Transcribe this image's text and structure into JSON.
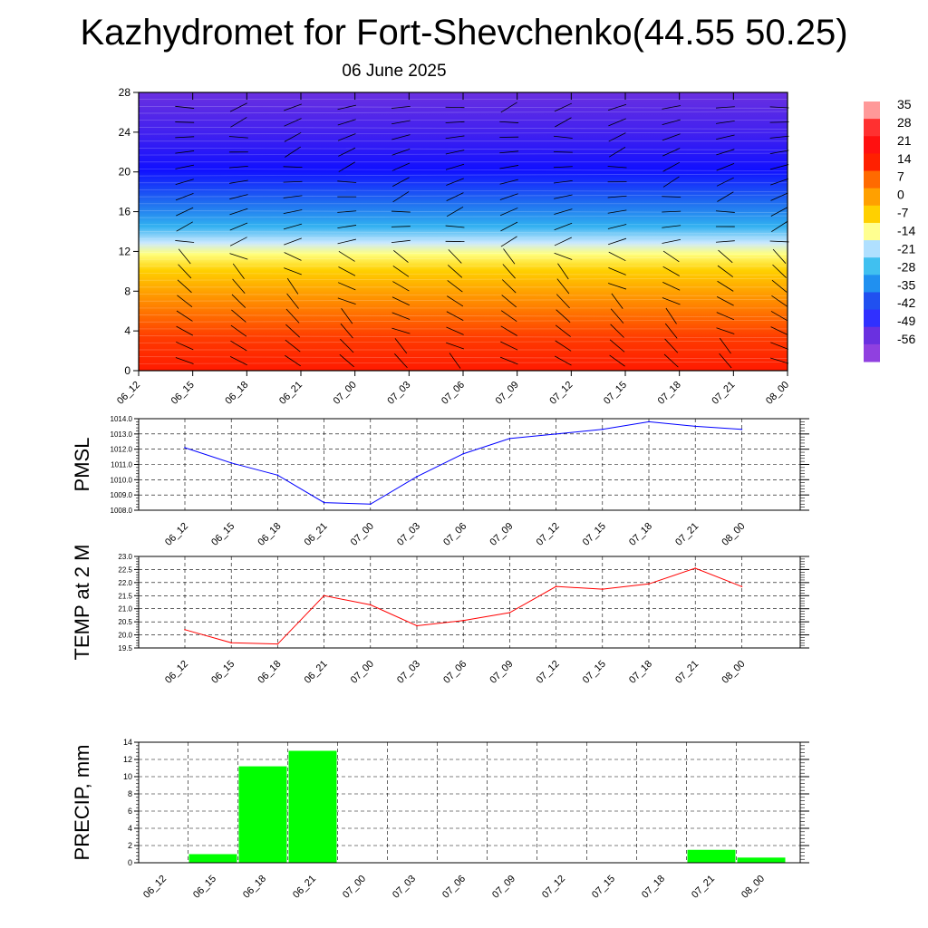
{
  "title": "Kazhydromet for Fort-Shevchenko(44.55 50.25)",
  "subtitle": "06 June 2025",
  "colorbar": {
    "labels": [
      "35",
      "28",
      "21",
      "14",
      "7",
      "0",
      "-7",
      "-14",
      "-21",
      "-28",
      "-35",
      "-42",
      "-49",
      "-56"
    ]
  },
  "chart_data": [
    {
      "type": "heatmap",
      "name": "cross-section",
      "x_ticks": [
        "06_12",
        "06_15",
        "06_18",
        "06_21",
        "07_00",
        "07_03",
        "07_06",
        "07_09",
        "07_12",
        "07_15",
        "07_18",
        "07_21",
        "08_00"
      ],
      "y_ticks": [
        "0",
        "4",
        "8",
        "12",
        "16",
        "20",
        "24",
        "28"
      ],
      "ylim": [
        0,
        28
      ],
      "overlay": "wind barbs"
    },
    {
      "type": "line",
      "ylabel": "PMSL",
      "color": "#0000ff",
      "ylim": [
        1008.0,
        1014.0
      ],
      "y_ticks": [
        "1008.0",
        "1009.0",
        "1010.0",
        "1011.0",
        "1012.0",
        "1013.0",
        "1014.0"
      ],
      "x": [
        "06_12",
        "06_15",
        "06_18",
        "06_21",
        "07_00",
        "07_03",
        "07_06",
        "07_09",
        "07_12",
        "07_15",
        "07_18",
        "07_21",
        "08_00"
      ],
      "values": [
        1012.1,
        1011.1,
        1010.3,
        1008.5,
        1008.4,
        1010.2,
        1011.7,
        1012.7,
        1013.0,
        1013.3,
        1013.8,
        1013.5,
        1013.3
      ],
      "grid": true
    },
    {
      "type": "line",
      "ylabel": "TEMP at 2 M",
      "color": "#ff0000",
      "ylim": [
        19.5,
        23.0
      ],
      "y_ticks": [
        "19.5",
        "20.0",
        "20.5",
        "21.0",
        "21.5",
        "22.0",
        "22.5",
        "23.0"
      ],
      "x": [
        "06_12",
        "06_15",
        "06_18",
        "06_21",
        "07_00",
        "07_03",
        "07_06",
        "07_09",
        "07_12",
        "07_15",
        "07_18",
        "07_21",
        "08_00"
      ],
      "values": [
        20.2,
        19.7,
        19.65,
        21.5,
        21.15,
        20.35,
        20.55,
        20.85,
        21.85,
        21.75,
        21.95,
        22.55,
        21.85
      ],
      "grid": true
    },
    {
      "type": "bar",
      "ylabel": "PRECIP, mm",
      "color": "#00ff00",
      "ylim": [
        0,
        14
      ],
      "y_ticks": [
        "0",
        "2",
        "4",
        "6",
        "8",
        "10",
        "12",
        "14"
      ],
      "x": [
        "06_12",
        "06_15",
        "06_18",
        "06_21",
        "07_00",
        "07_03",
        "07_06",
        "07_09",
        "07_12",
        "07_15",
        "07_18",
        "07_21",
        "08_00"
      ],
      "values": [
        0,
        1.0,
        11.2,
        13.0,
        0,
        0,
        0,
        0,
        0,
        0,
        0,
        1.5,
        0.6
      ],
      "grid": true
    }
  ]
}
